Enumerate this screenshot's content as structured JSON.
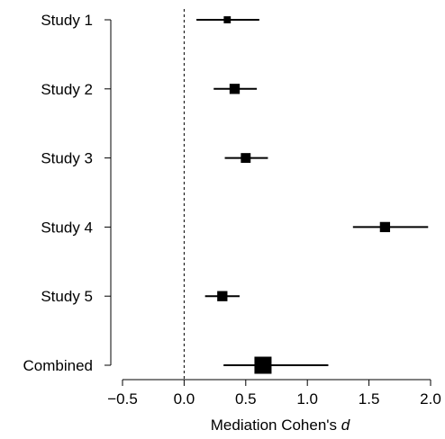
{
  "chart_data": {
    "type": "forest",
    "title": "",
    "xlabel": "Mediation Cohen's ",
    "xlabel_italic": "d",
    "ylabel": "",
    "xlim": [
      -0.5,
      2.0
    ],
    "x_ticks": [
      -0.5,
      0.0,
      0.5,
      1.0,
      1.5,
      2.0
    ],
    "x_tick_labels": [
      "−0.5",
      "0.0",
      "0.5",
      "1.0",
      "1.5",
      "2.0"
    ],
    "reference_line": 0,
    "grid": false,
    "rows": [
      {
        "label": "Study 1",
        "estimate": 0.35,
        "ci_low": 0.1,
        "ci_high": 0.61,
        "weight": 0.2
      },
      {
        "label": "Study 2",
        "estimate": 0.41,
        "ci_low": 0.24,
        "ci_high": 0.59,
        "weight": 0.45
      },
      {
        "label": "Study 3",
        "estimate": 0.5,
        "ci_low": 0.33,
        "ci_high": 0.68,
        "weight": 0.42
      },
      {
        "label": "Study 4",
        "estimate": 1.63,
        "ci_low": 1.37,
        "ci_high": 1.98,
        "weight": 0.45
      },
      {
        "label": "Study 5",
        "estimate": 0.31,
        "ci_low": 0.17,
        "ci_high": 0.45,
        "weight": 0.45
      },
      {
        "label": "Combined",
        "estimate": 0.64,
        "ci_low": 0.32,
        "ci_high": 1.17,
        "weight": 1.0
      }
    ]
  }
}
